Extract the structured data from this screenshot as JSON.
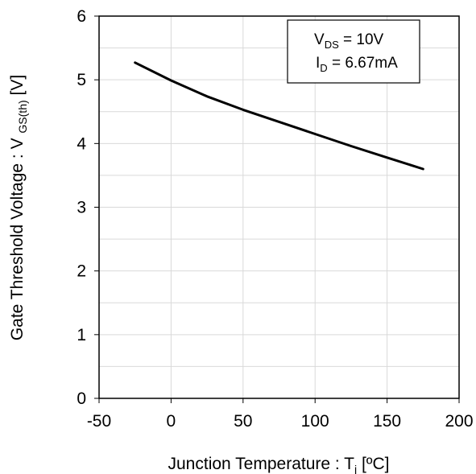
{
  "chart_data": {
    "type": "line",
    "xlabel": {
      "main": "Junction Temperature : T",
      "sub": "j",
      "tail": " [ºC]"
    },
    "ylabel": {
      "main": "Gate Threshold Voltage : V ",
      "sub": "GS(th)",
      "tail": " [V]"
    },
    "xlim": [
      -50,
      200
    ],
    "ylim": [
      0,
      6
    ],
    "x_ticks": [
      -50,
      0,
      50,
      100,
      150,
      200
    ],
    "y_ticks": [
      0,
      1,
      2,
      3,
      4,
      5,
      6
    ],
    "x_tick_labels": [
      "-50",
      "0",
      "50",
      "100",
      "150",
      "200"
    ],
    "y_tick_labels": [
      "0",
      "1",
      "2",
      "3",
      "4",
      "5",
      "6"
    ],
    "grid": true,
    "legend_placement": "top-right",
    "annotation": [
      {
        "main": "V",
        "sub": "DS",
        "tail": " = 10V"
      },
      {
        "main": "I",
        "sub": "D",
        "tail": " = 6.67mA"
      }
    ],
    "series": [
      {
        "color": "#000000",
        "x": [
          -25,
          0,
          25,
          50,
          75,
          100,
          125,
          150,
          175
        ],
        "y": [
          5.27,
          4.99,
          4.74,
          4.53,
          4.34,
          4.15,
          3.96,
          3.78,
          3.6
        ]
      }
    ]
  }
}
